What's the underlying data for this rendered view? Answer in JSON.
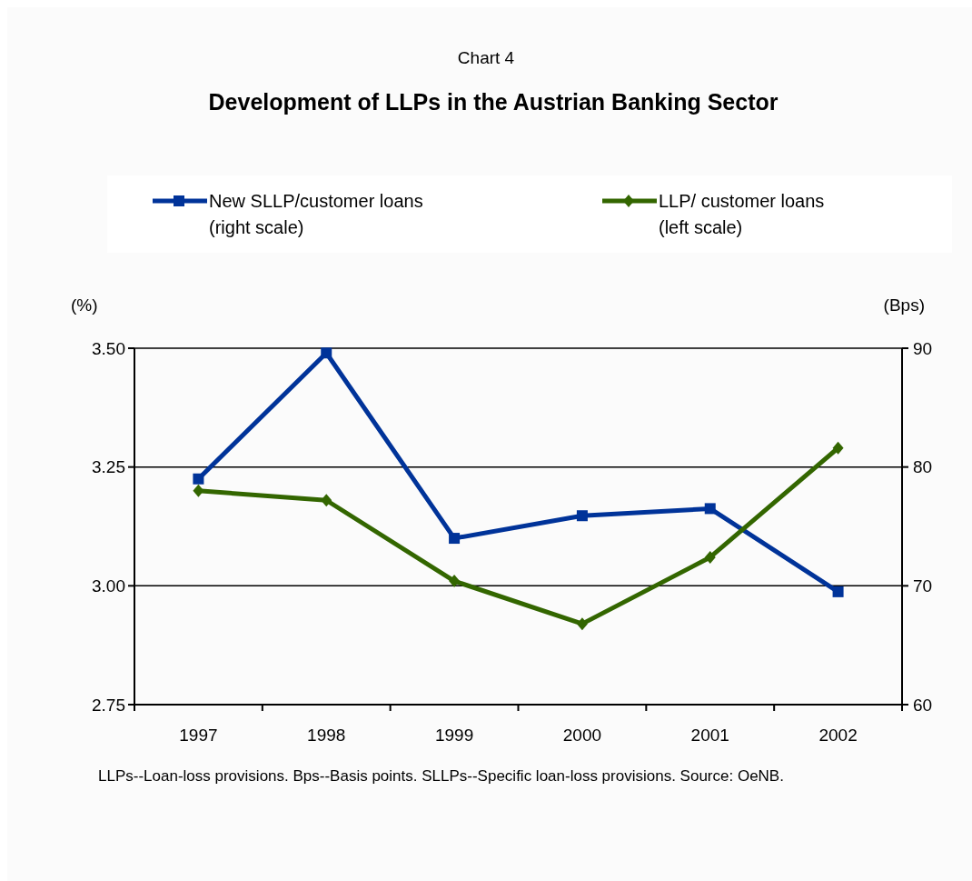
{
  "chart_data": {
    "type": "line",
    "title": "Chart 4",
    "subtitle": "Development of LLPs in the Austrian Banking Sector",
    "categories": [
      "1997",
      "1998",
      "1999",
      "2000",
      "2001",
      "2002"
    ],
    "series": [
      {
        "name": "New SLLP/customer loans\n(right scale)",
        "color": "#003399",
        "marker": "square",
        "axis": "y2",
        "values": [
          79.0,
          89.6,
          74.0,
          75.9,
          76.5,
          69.5
        ]
      },
      {
        "name": "LLP/ customer loans\n(left scale)",
        "color": "#336600",
        "marker": "diamond",
        "values": [
          3.2,
          3.18,
          3.01,
          2.92,
          3.06,
          3.29
        ]
      }
    ],
    "ylabel": "(%)",
    "y2label": "(Bps)",
    "ylim": [
      2.75,
      3.5
    ],
    "yticks": [
      {
        "value": 2.75,
        "label": "2.75"
      },
      {
        "value": 3.0,
        "label": "3.00"
      },
      {
        "value": 3.25,
        "label": "3.25"
      },
      {
        "value": 3.5,
        "label": "3.50"
      }
    ],
    "y2lim": [
      60,
      90
    ],
    "y2ticks": [
      60,
      70,
      80,
      90
    ],
    "grid": "y",
    "legend": "top",
    "annotations": [
      "LLPs--Loan-loss provisions. Bps--Basis points. SLLPs--Specific loan-loss provisions. Source: OeNB."
    ]
  }
}
